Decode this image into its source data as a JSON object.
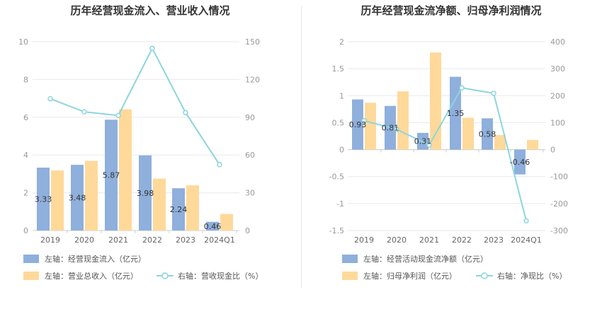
{
  "colors": {
    "bar1": "#8fafdc",
    "bar2": "#ffd99a",
    "line": "#8dd5dc",
    "grid": "#e8e8f0",
    "axis": "#cccccc"
  },
  "chart_data": [
    {
      "type": "bar",
      "title": "历年经营现金流入、营业收入情况",
      "categories": [
        "2019",
        "2020",
        "2021",
        "2022",
        "2023",
        "2024Q1"
      ],
      "left_axis": {
        "ylim": [
          0,
          10
        ],
        "ticks": [
          0,
          2,
          4,
          6,
          8,
          10
        ]
      },
      "right_axis": {
        "ylim": [
          0,
          150
        ],
        "ticks": [
          0,
          30,
          60,
          90,
          120,
          150
        ]
      },
      "series": [
        {
          "name": "左轴：经营现金流入（亿元）",
          "kind": "bar",
          "axis": "left",
          "color": "#8fafdc",
          "values": [
            3.33,
            3.48,
            5.87,
            3.98,
            2.24,
            0.46
          ],
          "labels": [
            "3.33",
            "3.48",
            "5.87",
            "3.98",
            "2.24",
            "0.46"
          ]
        },
        {
          "name": "左轴：营业总收入（亿元）",
          "kind": "bar",
          "axis": "left",
          "color": "#ffd99a",
          "values": [
            3.18,
            3.69,
            6.42,
            2.75,
            2.39,
            0.88
          ]
        },
        {
          "name": "右轴：营收现金比（%）",
          "kind": "line",
          "axis": "right",
          "color": "#8dd5dc",
          "values": [
            104.7,
            94.3,
            91.4,
            144.7,
            93.7,
            52.3
          ]
        }
      ]
    },
    {
      "type": "bar",
      "title": "历年经营现金流净额、归母净利润情况",
      "categories": [
        "2019",
        "2020",
        "2021",
        "2022",
        "2023",
        "2024Q1"
      ],
      "left_axis": {
        "ylim": [
          -1.5,
          2
        ],
        "ticks": [
          -1.5,
          -1,
          -0.5,
          0,
          0.5,
          1,
          1.5,
          2
        ]
      },
      "right_axis": {
        "ylim": [
          -300,
          400
        ],
        "ticks": [
          -300,
          -200,
          -100,
          0,
          100,
          200,
          300,
          400
        ]
      },
      "series": [
        {
          "name": "左轴：经营活动现金流净额（亿元）",
          "kind": "bar",
          "axis": "left",
          "color": "#8fafdc",
          "values": [
            0.93,
            0.81,
            0.31,
            1.35,
            0.58,
            -0.46
          ],
          "labels": [
            "0.93",
            "0.81",
            "0.31",
            "1.35",
            "0.58",
            "-0.46"
          ]
        },
        {
          "name": "左轴：归母净利润（亿元）",
          "kind": "bar",
          "axis": "left",
          "color": "#ffd99a",
          "values": [
            0.87,
            1.08,
            1.8,
            0.59,
            0.27,
            0.18
          ]
        },
        {
          "name": "右轴：净现比（%）",
          "kind": "line",
          "axis": "right",
          "color": "#8dd5dc",
          "values": [
            107,
            75,
            17,
            229,
            209,
            -264
          ]
        }
      ]
    }
  ]
}
